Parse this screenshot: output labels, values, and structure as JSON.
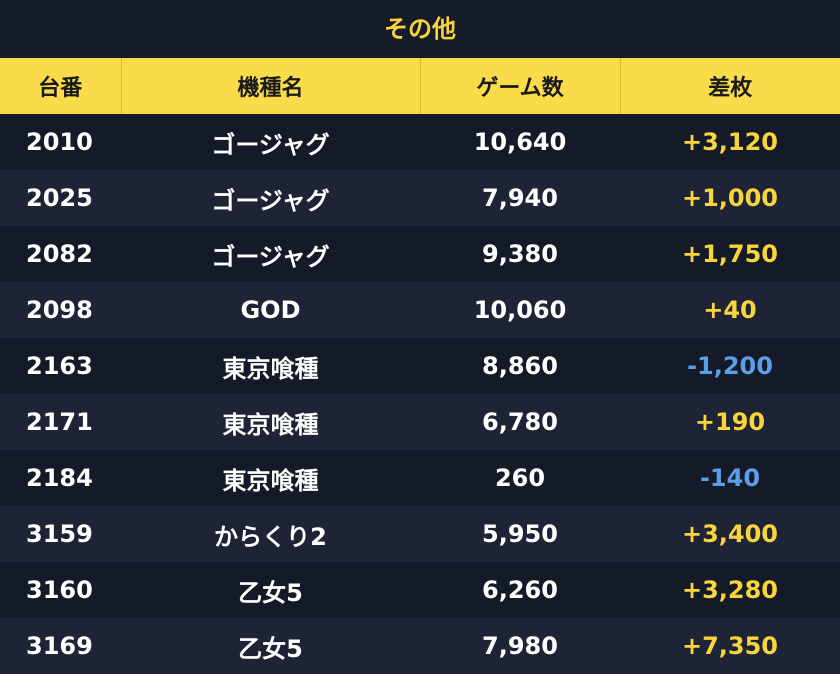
{
  "title": "その他",
  "headers": [
    "台番",
    "機種名",
    "ゲーム数",
    "差枚"
  ],
  "colors": {
    "accent": "#fadb4a",
    "positive": "#f9d43b",
    "negative": "#5b9fe8"
  },
  "rows": [
    {
      "id": "2010",
      "machine": "ゴージャグ",
      "games": "10,640",
      "diff": "+3,120",
      "sign": "pos"
    },
    {
      "id": "2025",
      "machine": "ゴージャグ",
      "games": "7,940",
      "diff": "+1,000",
      "sign": "pos"
    },
    {
      "id": "2082",
      "machine": "ゴージャグ",
      "games": "9,380",
      "diff": "+1,750",
      "sign": "pos"
    },
    {
      "id": "2098",
      "machine": "GOD",
      "games": "10,060",
      "diff": "+40",
      "sign": "pos"
    },
    {
      "id": "2163",
      "machine": "東京喰種",
      "games": "8,860",
      "diff": "-1,200",
      "sign": "neg"
    },
    {
      "id": "2171",
      "machine": "東京喰種",
      "games": "6,780",
      "diff": "+190",
      "sign": "pos"
    },
    {
      "id": "2184",
      "machine": "東京喰種",
      "games": "260",
      "diff": "-140",
      "sign": "neg"
    },
    {
      "id": "3159",
      "machine": "からくり2",
      "games": "5,950",
      "diff": "+3,400",
      "sign": "pos"
    },
    {
      "id": "3160",
      "machine": "乙女5",
      "games": "6,260",
      "diff": "+3,280",
      "sign": "pos"
    },
    {
      "id": "3169",
      "machine": "乙女5",
      "games": "7,980",
      "diff": "+7,350",
      "sign": "pos"
    }
  ]
}
